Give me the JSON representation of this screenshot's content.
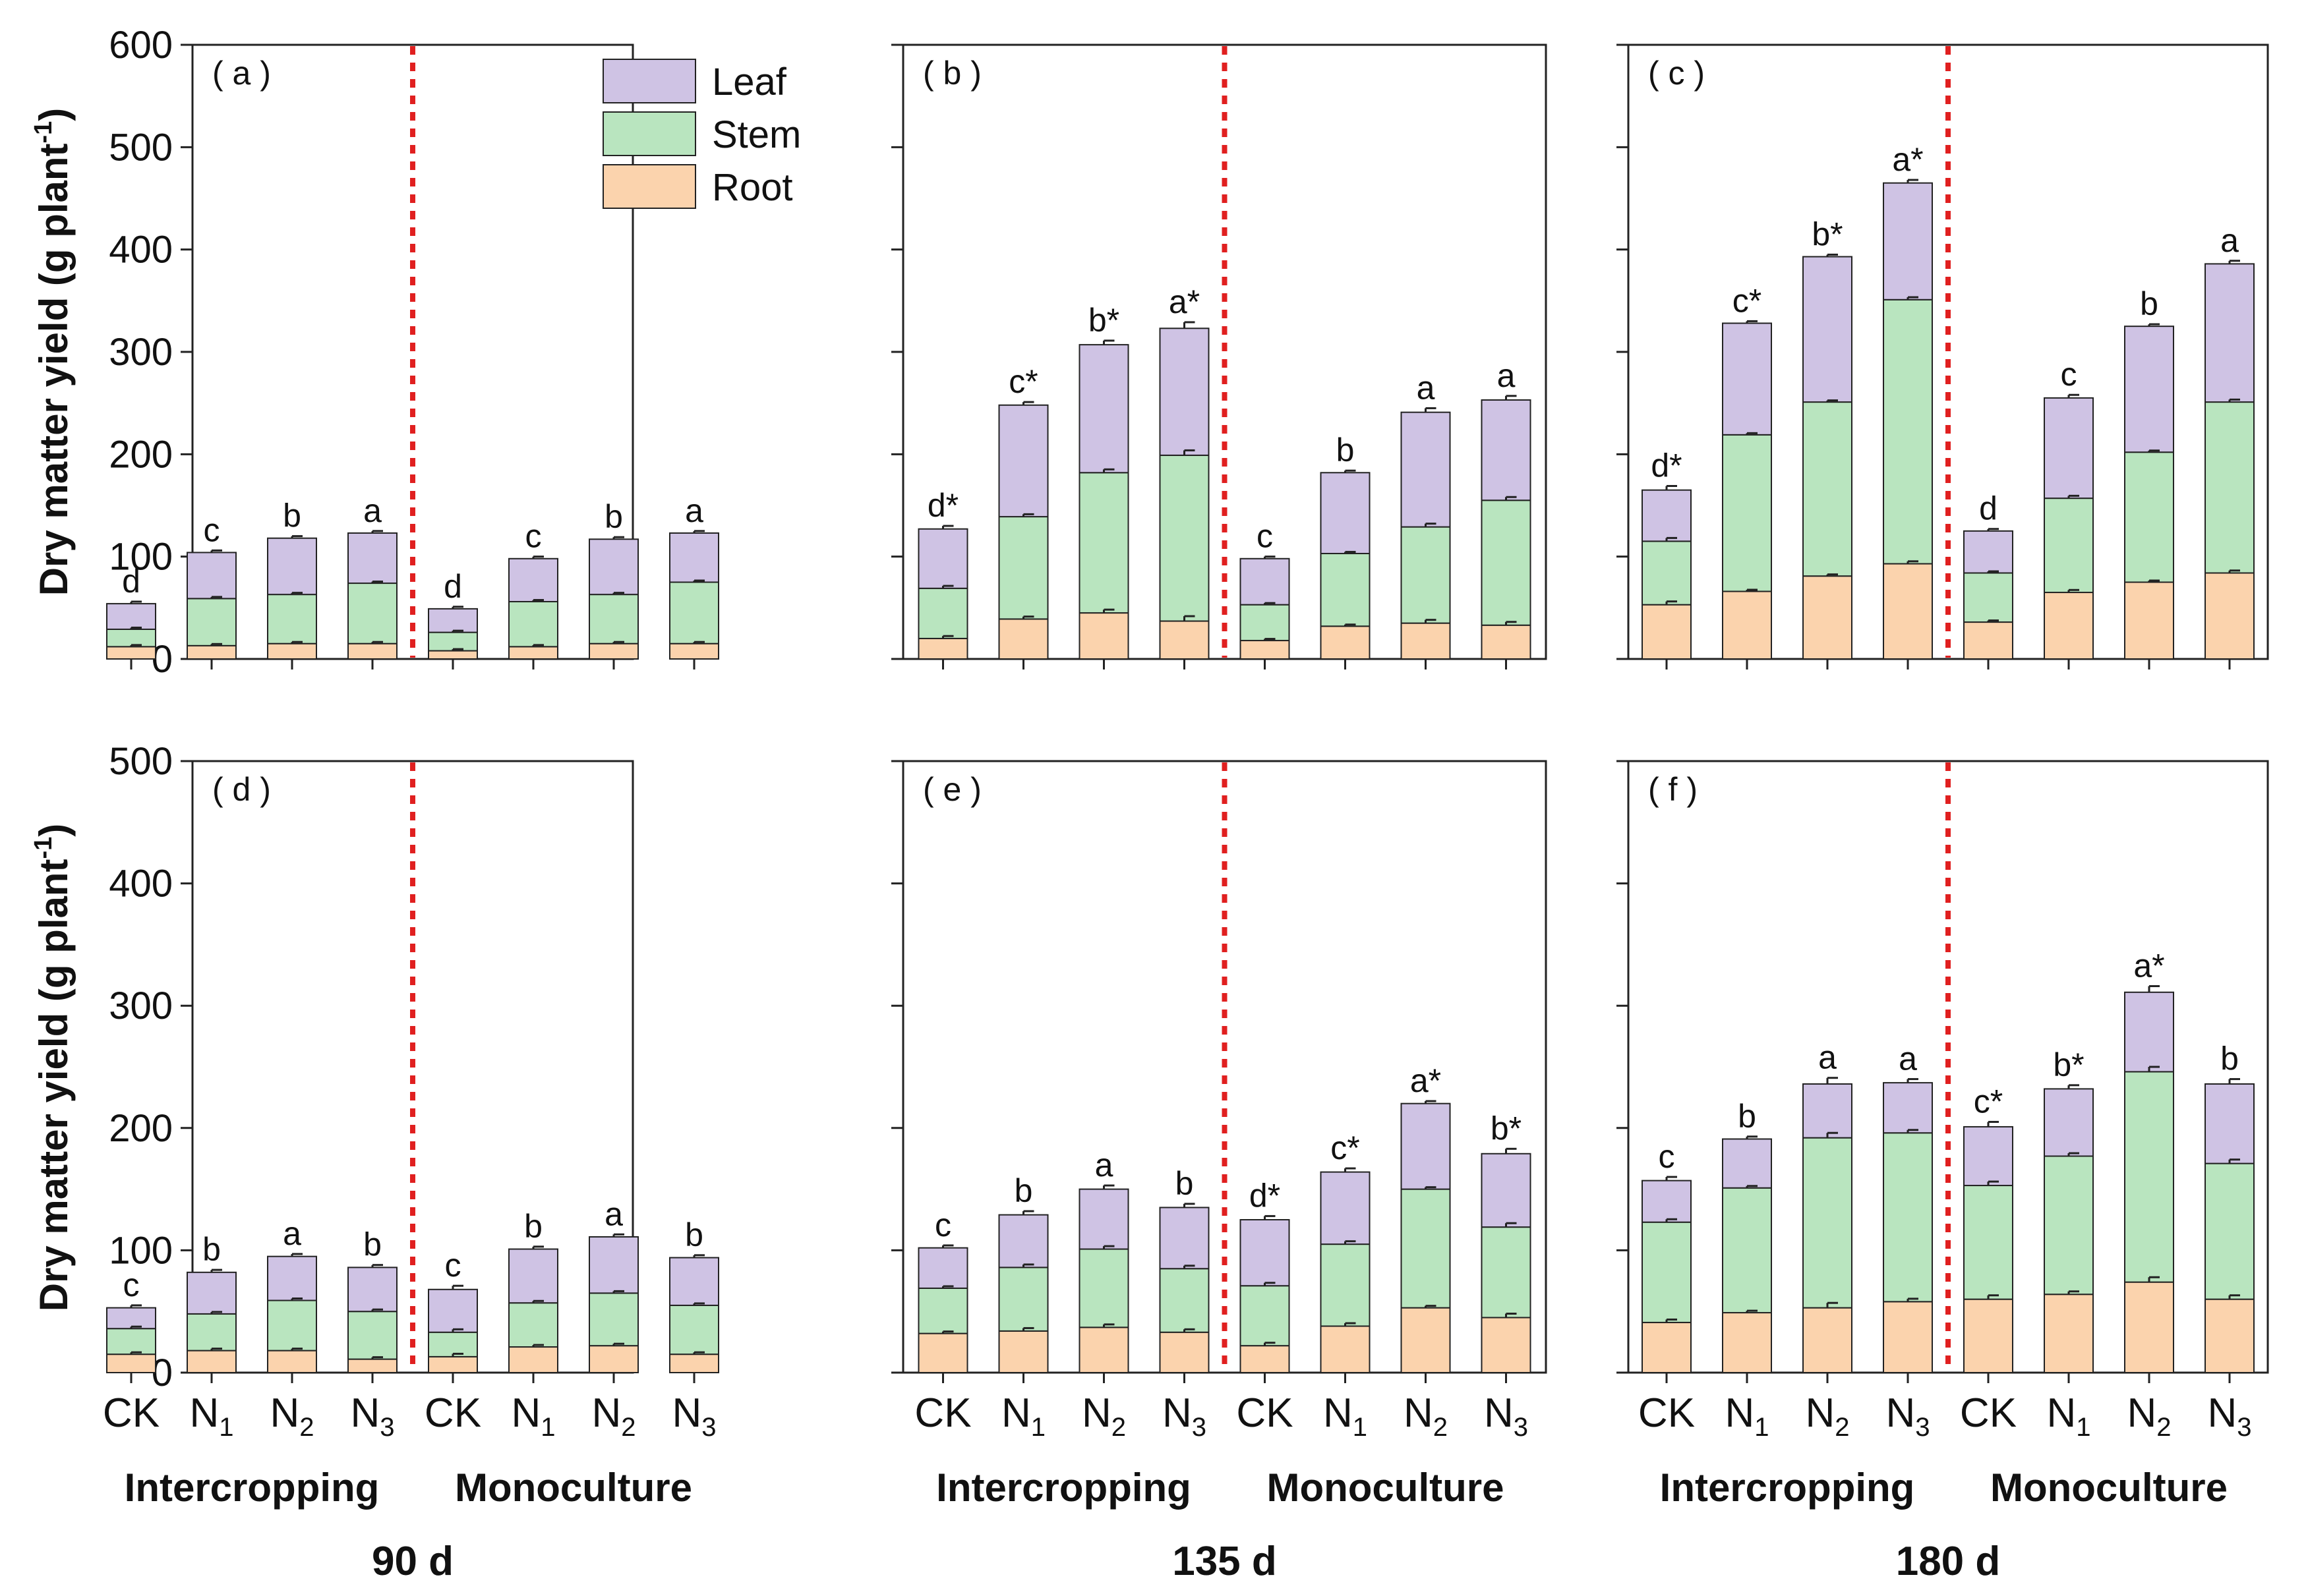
{
  "chart_data": {
    "type": "bar",
    "stacked": true,
    "ylabel": "Dry matter yield (g plant",
    "ylabel_superscript": "-1",
    "ylabel_close": ")",
    "categories": [
      {
        "main": "CK",
        "sub": ""
      },
      {
        "main": "N",
        "sub": "1"
      },
      {
        "main": "N",
        "sub": "2"
      },
      {
        "main": "N",
        "sub": "3"
      },
      {
        "main": "CK",
        "sub": ""
      },
      {
        "main": "N",
        "sub": "1"
      },
      {
        "main": "N",
        "sub": "2"
      },
      {
        "main": "N",
        "sub": "3"
      }
    ],
    "groups": [
      "Intercropping",
      "Monoculture"
    ],
    "days": [
      "90 d",
      "135 d",
      "180 d"
    ],
    "legend": [
      {
        "name": "Leaf",
        "color": "#cfc3e4"
      },
      {
        "name": "Stem",
        "color": "#b9e5bf"
      },
      {
        "name": "Root",
        "color": "#fbd3ad"
      }
    ],
    "rows": [
      {
        "ylim": [
          0,
          600
        ],
        "ticks": [
          0,
          100,
          200,
          300,
          400,
          500,
          600
        ]
      },
      {
        "ylim": [
          0,
          500
        ],
        "ticks": [
          0,
          100,
          200,
          300,
          400,
          500
        ]
      }
    ],
    "panels": [
      {
        "label": "( a )",
        "row": 0,
        "col": 0,
        "root": [
          12,
          13,
          15,
          15,
          8,
          12,
          15,
          15
        ],
        "stem": [
          29,
          59,
          63,
          74,
          26,
          56,
          63,
          75
        ],
        "total": [
          54,
          104,
          118,
          123,
          49,
          98,
          117,
          123
        ],
        "err": [
          2,
          2,
          2,
          2,
          2,
          2,
          2,
          2
        ],
        "sig": [
          "d",
          "c",
          "b",
          "a",
          "d",
          "c",
          "b",
          "a"
        ]
      },
      {
        "label": "( b )",
        "row": 0,
        "col": 1,
        "root": [
          20,
          39,
          45,
          37,
          18,
          32,
          35,
          33
        ],
        "stem": [
          69,
          139,
          182,
          199,
          53,
          103,
          129,
          155
        ],
        "total": [
          127,
          248,
          307,
          323,
          98,
          182,
          241,
          253
        ],
        "err": [
          3,
          3,
          4,
          6,
          2,
          2,
          4,
          4
        ],
        "sig": [
          "d*",
          "c*",
          "b*",
          "a*",
          "c",
          "b",
          "a",
          "a"
        ]
      },
      {
        "label": "( c )",
        "row": 0,
        "col": 2,
        "root": [
          53,
          66,
          81,
          93,
          36,
          65,
          75,
          84
        ],
        "stem": [
          115,
          219,
          251,
          351,
          84,
          157,
          202,
          251
        ],
        "total": [
          165,
          328,
          393,
          465,
          125,
          255,
          325,
          386
        ],
        "err": [
          4,
          2,
          2,
          3,
          2,
          3,
          2,
          3
        ],
        "sig": [
          "d*",
          "c*",
          "b*",
          "a*",
          "d",
          "c",
          "b",
          "a"
        ]
      },
      {
        "label": "( d )",
        "row": 1,
        "col": 0,
        "root": [
          15,
          18,
          18,
          11,
          13,
          21,
          22,
          15
        ],
        "stem": [
          36,
          48,
          59,
          50,
          33,
          57,
          65,
          55
        ],
        "total": [
          53,
          82,
          95,
          86,
          68,
          101,
          111,
          94
        ],
        "err": [
          2,
          2,
          2,
          2,
          3,
          2,
          2,
          2
        ],
        "sig": [
          "c",
          "b",
          "a",
          "b",
          "c",
          "b",
          "a",
          "b"
        ]
      },
      {
        "label": "( e )",
        "row": 1,
        "col": 1,
        "root": [
          32,
          34,
          37,
          33,
          22,
          38,
          53,
          45
        ],
        "stem": [
          69,
          86,
          101,
          85,
          71,
          105,
          150,
          119
        ],
        "total": [
          102,
          129,
          150,
          135,
          125,
          164,
          220,
          179
        ],
        "err": [
          2,
          3,
          3,
          3,
          3,
          3,
          2,
          4
        ],
        "sig": [
          "c",
          "b",
          "a",
          "b",
          "d*",
          "c*",
          "a*",
          "b*"
        ]
      },
      {
        "label": "( f )",
        "row": 1,
        "col": 2,
        "root": [
          41,
          49,
          53,
          58,
          60,
          64,
          74,
          60
        ],
        "stem": [
          123,
          151,
          192,
          196,
          153,
          177,
          246,
          171
        ],
        "total": [
          157,
          191,
          236,
          237,
          201,
          232,
          311,
          236
        ],
        "err": [
          3,
          2,
          5,
          3,
          4,
          3,
          5,
          4
        ],
        "sig": [
          "c",
          "b",
          "a",
          "a",
          "c*",
          "b*",
          "a*",
          "b"
        ]
      }
    ]
  }
}
